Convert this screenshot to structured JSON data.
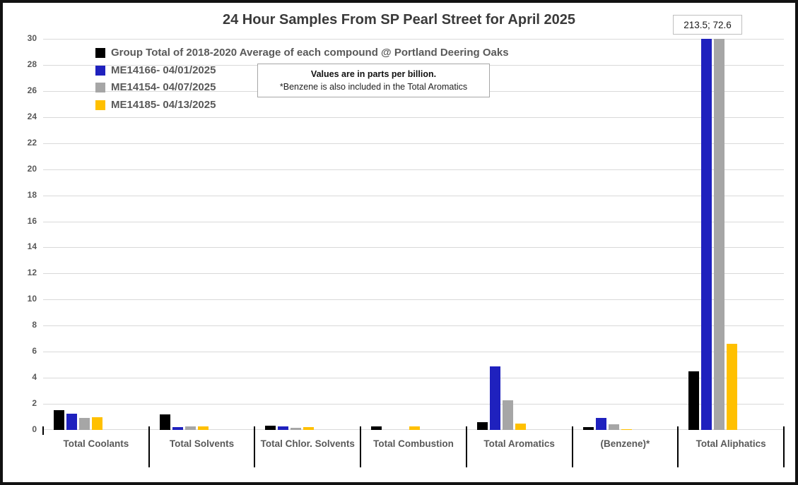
{
  "offscale_label": "213.5; 72.6",
  "note_box": {
    "line1": "Values are in parts per billion.",
    "line2": "*Benzene is also included in the Total Aromatics"
  },
  "legend": {
    "items": [
      {
        "label": "Group Total of 2018-2020 Average of each compound @ Portland Deering Oaks",
        "color": "#000000"
      },
      {
        "label": "ME14166- 04/01/2025",
        "color": "#1f21be"
      },
      {
        "label": "ME14154- 04/07/2025",
        "color": "#a6a6a6"
      },
      {
        "label": "ME14185- 04/13/2025",
        "color": "#ffc000"
      }
    ]
  },
  "chart_data": {
    "type": "bar",
    "title": "24 Hour Samples From SP Pearl Street for April 2025",
    "unit": "parts per billion",
    "categories": [
      "Total Coolants",
      "Total Solvents",
      "Total Chlor. Solvents",
      "Total Combustion",
      "Total Aromatics",
      "(Benzene)*",
      "Total Aliphatics"
    ],
    "series": [
      {
        "name": "Group Total of 2018-2020 Average of each compound @ Portland Deering Oaks",
        "color": "#000000",
        "values": [
          1.5,
          1.2,
          0.35,
          0.25,
          0.6,
          0.2,
          4.5
        ]
      },
      {
        "name": "ME14166- 04/01/2025",
        "color": "#1f21be",
        "values": [
          1.25,
          0.2,
          0.25,
          0,
          4.85,
          0.9,
          213.5
        ]
      },
      {
        "name": "ME14154- 04/07/2025",
        "color": "#a6a6a6",
        "values": [
          0.9,
          0.25,
          0.15,
          0,
          2.3,
          0.45,
          72.6
        ]
      },
      {
        "name": "ME14185- 04/13/2025",
        "color": "#ffc000",
        "values": [
          1.0,
          0.25,
          0.2,
          0.25,
          0.5,
          0.05,
          6.6
        ]
      }
    ],
    "ylim": [
      0,
      30
    ],
    "ytick_step": 2,
    "grid": true,
    "legend_position": "top-left",
    "annotations": [
      "213.5; 72.6 = off-scale values of ME14166 and ME14154 bars for Total Aliphatics"
    ]
  }
}
